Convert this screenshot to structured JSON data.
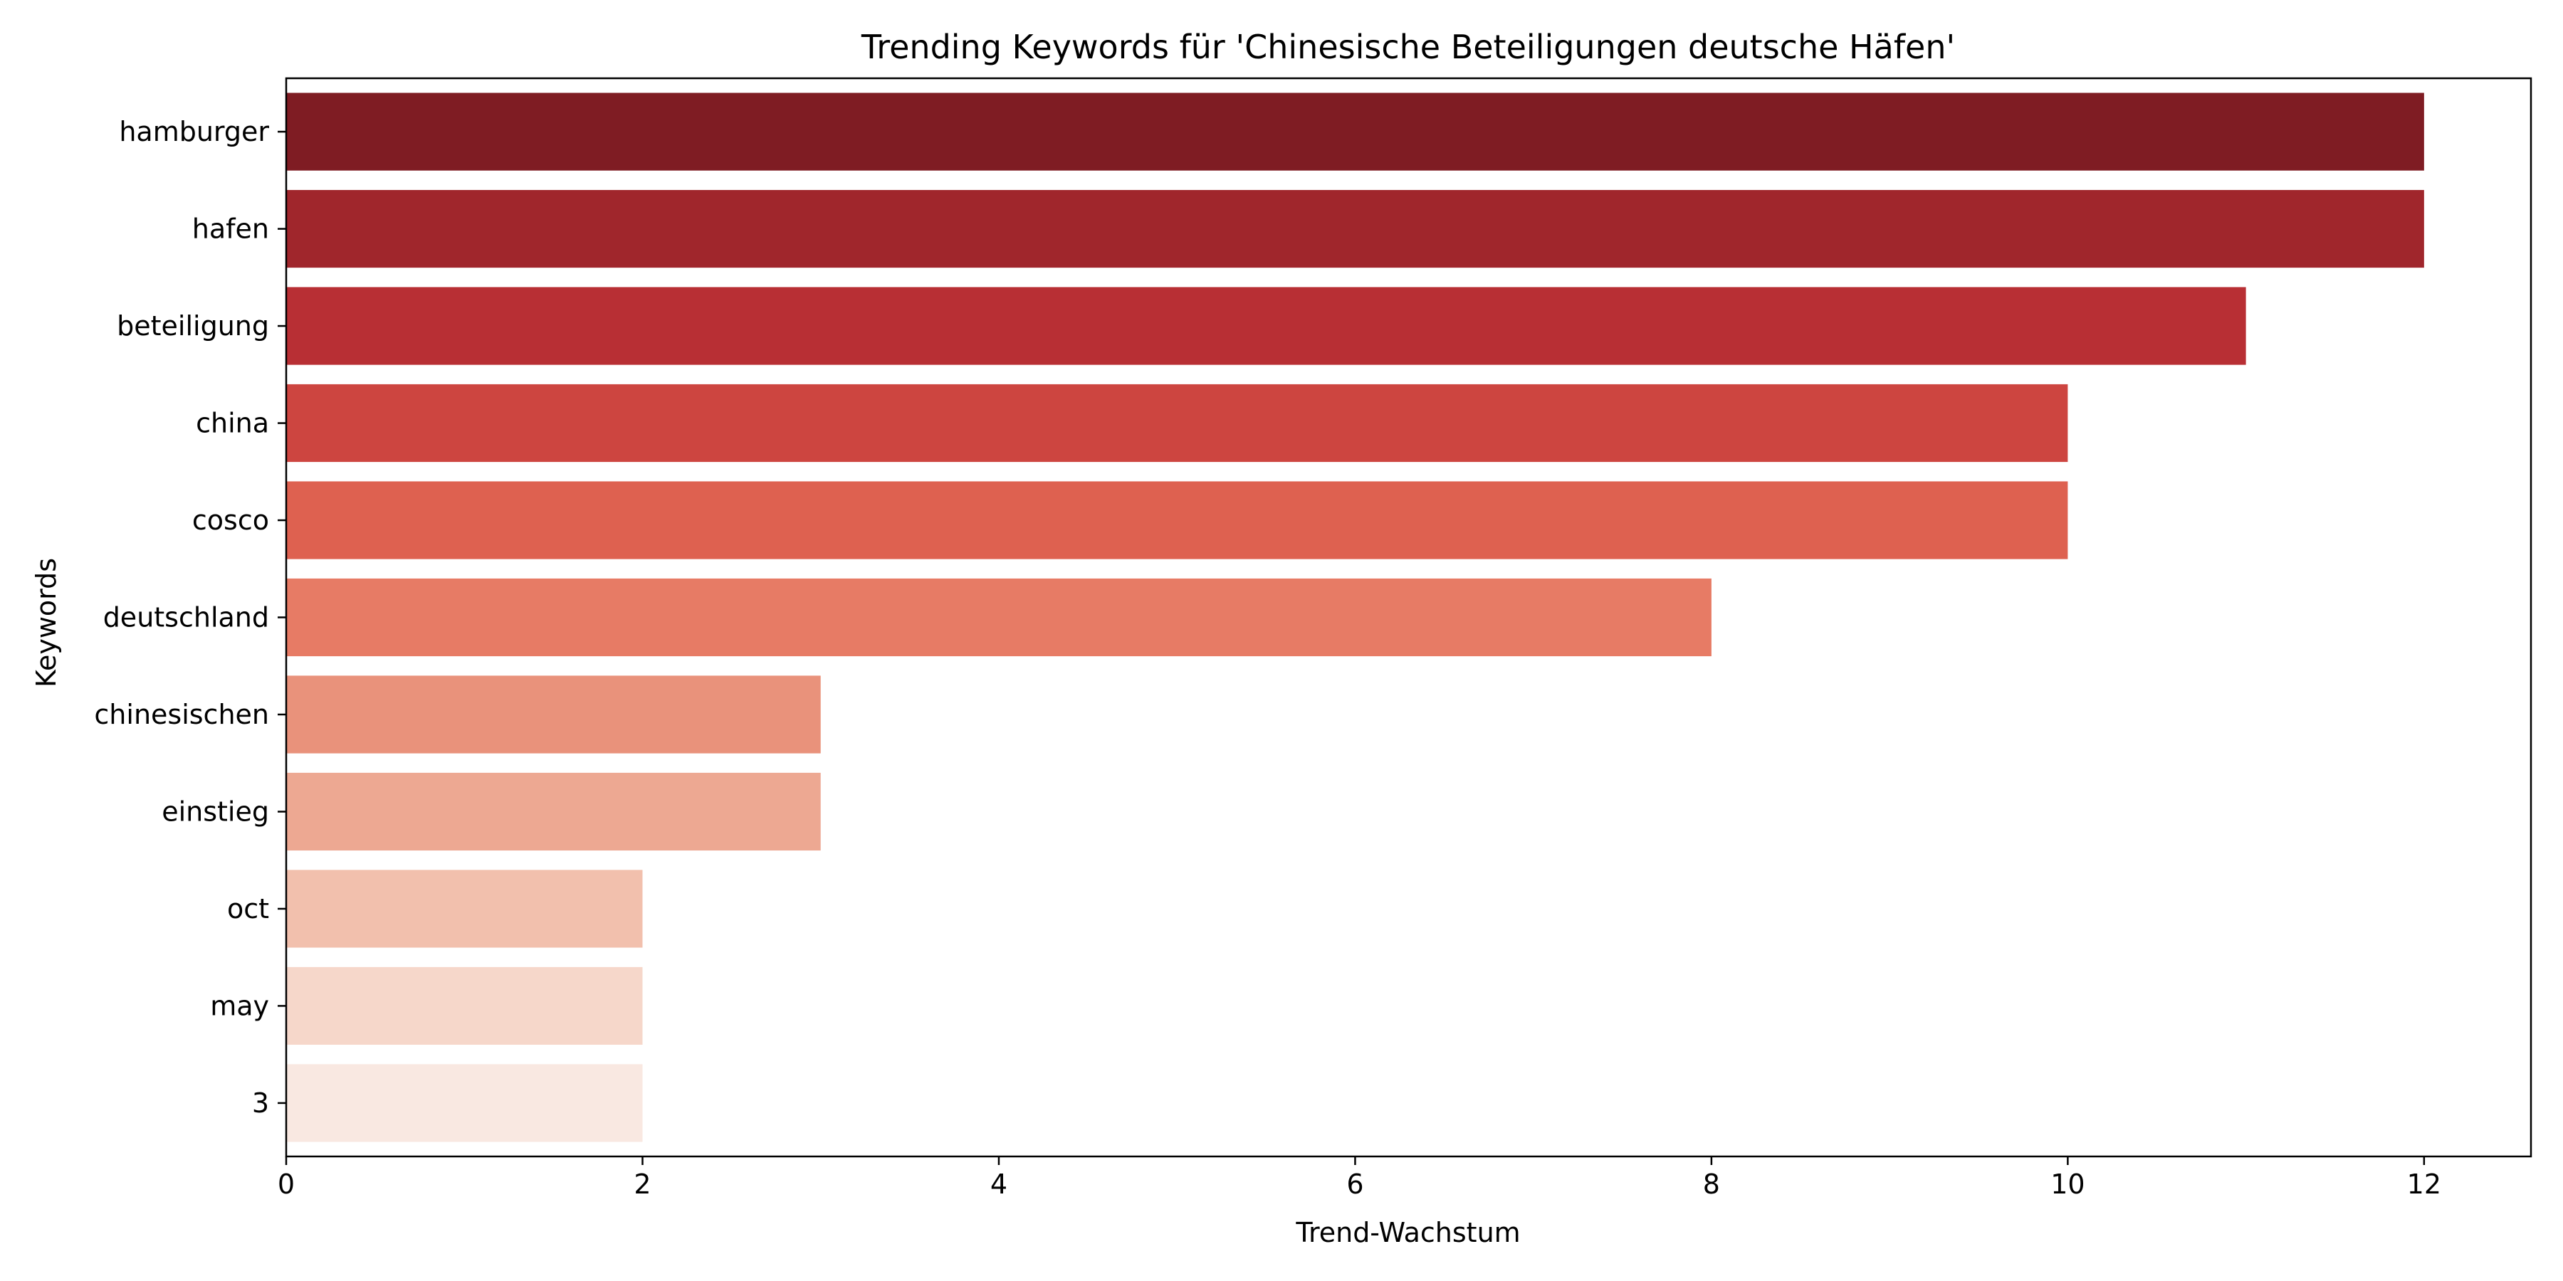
{
  "chart_data": {
    "type": "bar",
    "orientation": "horizontal",
    "title": "Trending Keywords für 'Chinesische Beteiligungen deutsche Häfen'",
    "xlabel": "Trend-Wachstum",
    "ylabel": "Keywords",
    "categories": [
      "hamburger",
      "hafen",
      "beteiligung",
      "china",
      "cosco",
      "deutschland",
      "chinesischen",
      "einstieg",
      "oct",
      "may",
      "3"
    ],
    "values": [
      12,
      12,
      11,
      10,
      10,
      8,
      3,
      3,
      2,
      2,
      2
    ],
    "colors": [
      "#7f1c23",
      "#a0262c",
      "#b82f34",
      "#cd4540",
      "#de6150",
      "#e77b65",
      "#e9927b",
      "#eda892",
      "#f2c0ad",
      "#f6d7ca",
      "#f9e8e1"
    ],
    "xlim": [
      0,
      12.6
    ],
    "xticks": [
      0,
      2,
      4,
      6,
      8,
      10,
      12
    ],
    "xtick_labels": [
      "0",
      "2",
      "4",
      "6",
      "8",
      "10",
      "12"
    ],
    "grid": false,
    "legend": false
  }
}
